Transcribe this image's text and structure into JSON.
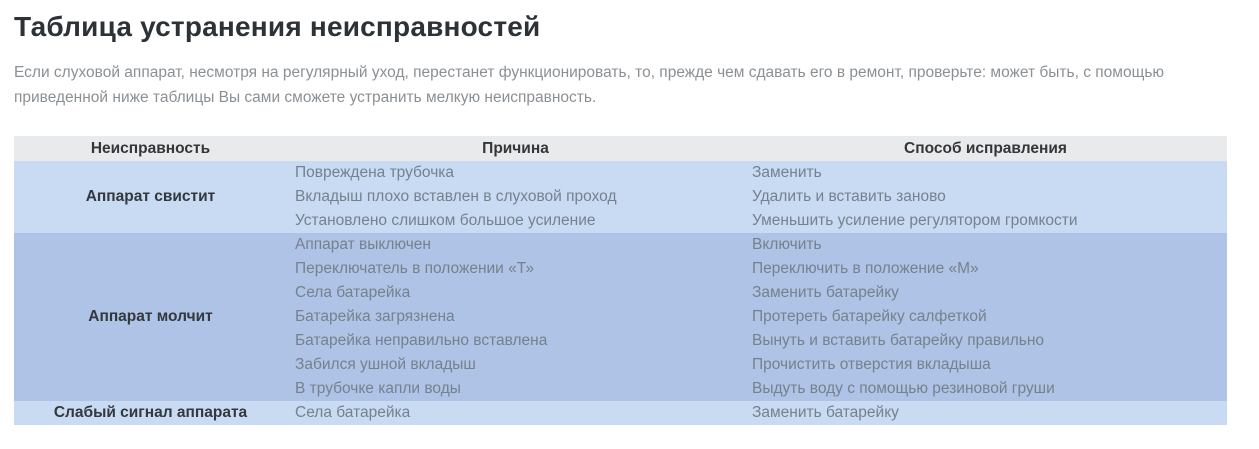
{
  "page": {
    "title": "Таблица устранения неисправностей",
    "intro_lines": [
      "Если слуховой аппарат, несмотря на регулярный уход, перестанет функционировать, то, прежде чем сдавать его в ремонт, проверьте: может быть, с помощью",
      "приведенной ниже таблицы Вы сами сможете устранить мелкую неисправность."
    ]
  },
  "table": {
    "headers": [
      "Неисправность",
      "Причина",
      "Способ исправления"
    ],
    "groups": [
      {
        "fault": "Аппарат свистит",
        "tone": "light",
        "rows": [
          {
            "cause": "Повреждена трубочка",
            "fix": "Заменить"
          },
          {
            "cause": "Вкладыш плохо вставлен в слуховой проход",
            "fix": "Удалить и вставить заново"
          },
          {
            "cause": "Установлено слишком большое усиление",
            "fix": "Уменьшить усиление регулятором громкости"
          }
        ]
      },
      {
        "fault": "Аппарат молчит",
        "tone": "dark",
        "rows": [
          {
            "cause": "Аппарат выключен",
            "fix": "Включить"
          },
          {
            "cause": "Переключатель в положении «Т»",
            "fix": "Переключить в положение «М»"
          },
          {
            "cause": "Села батарейка",
            "fix": "Заменить батарейку"
          },
          {
            "cause": "Батарейка загрязнена",
            "fix": "Протереть батарейку салфеткой"
          },
          {
            "cause": "Батарейка неправильно вставлена",
            "fix": "Вынуть и вставить батарейку правильно"
          },
          {
            "cause": "Забился ушной вкладыш",
            "fix": "Прочистить отверстия вкладыша"
          },
          {
            "cause": "В трубочке капли воды",
            "fix": "Выдуть воду с помощью резиновой груши"
          }
        ]
      },
      {
        "fault": "Слабый сигнал аппарата",
        "tone": "light",
        "rows": [
          {
            "cause": "Села батарейка",
            "fix": "Заменить батарейку"
          }
        ]
      }
    ],
    "colors": {
      "header_bg": "#e9eaeb",
      "header_text": "#33373b",
      "band_light": "#c8dbf2",
      "band_dark": "#aec3e5",
      "fault_text": "#33383e",
      "cell_text": "#75818d",
      "title_text": "#2d3236",
      "intro_text": "#8b9095"
    }
  }
}
